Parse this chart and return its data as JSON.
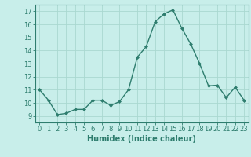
{
  "x": [
    0,
    1,
    2,
    3,
    4,
    5,
    6,
    7,
    8,
    9,
    10,
    11,
    12,
    13,
    14,
    15,
    16,
    17,
    18,
    19,
    20,
    21,
    22,
    23
  ],
  "y": [
    11.0,
    10.2,
    9.1,
    9.2,
    9.5,
    9.5,
    10.2,
    10.2,
    9.8,
    10.1,
    11.0,
    13.5,
    14.3,
    16.2,
    16.8,
    17.1,
    15.7,
    14.5,
    13.0,
    11.3,
    11.35,
    10.4,
    11.2,
    10.2
  ],
  "line_color": "#2e7d6e",
  "marker": "D",
  "marker_size": 2,
  "background_color": "#c8eeea",
  "grid_color": "#aad8d0",
  "xlabel": "Humidex (Indice chaleur)",
  "xlabel_fontsize": 7,
  "xlabel_bold": true,
  "ylim": [
    8.5,
    17.5
  ],
  "xlim": [
    -0.5,
    23.5
  ],
  "yticks": [
    9,
    10,
    11,
    12,
    13,
    14,
    15,
    16,
    17
  ],
  "xticks": [
    0,
    1,
    2,
    3,
    4,
    5,
    6,
    7,
    8,
    9,
    10,
    11,
    12,
    13,
    14,
    15,
    16,
    17,
    18,
    19,
    20,
    21,
    22,
    23
  ],
  "tick_fontsize": 6,
  "line_width": 1.0
}
